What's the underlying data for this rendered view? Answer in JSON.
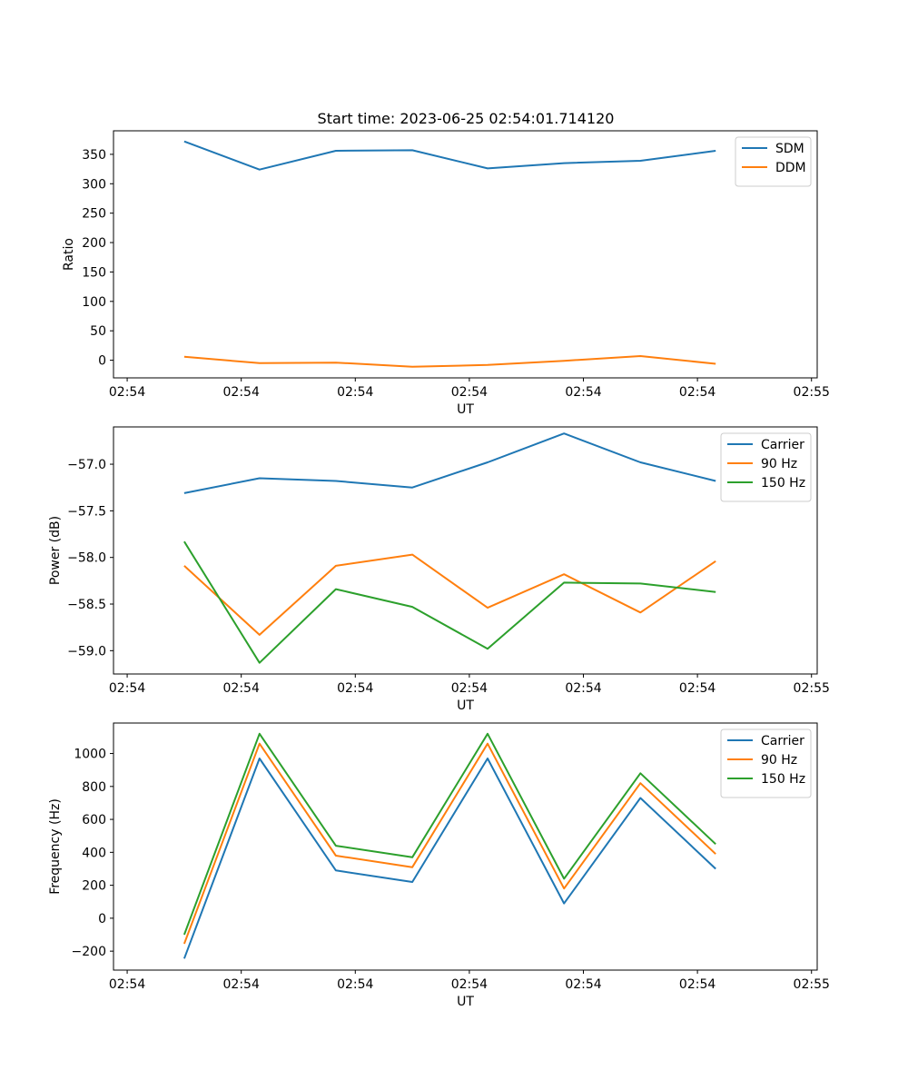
{
  "figure_title": "Start time: 2023-06-25 02:54:01.714120",
  "chart_data": [
    {
      "type": "line",
      "title": "Start time: 2023-06-25 02:54:01.714120",
      "xlabel": "UT",
      "ylabel": "Ratio",
      "xtick_labels": [
        "02:54",
        "02:54",
        "02:54",
        "02:54",
        "02:54",
        "02:54",
        "02:55"
      ],
      "x": [
        0.5,
        1.16,
        1.83,
        2.5,
        3.16,
        3.83,
        4.5,
        5.16
      ],
      "xlim": [
        -0.12,
        6.05
      ],
      "ylim": [
        -30,
        390
      ],
      "yticks": [
        0,
        50,
        100,
        150,
        200,
        250,
        300,
        350
      ],
      "series": [
        {
          "name": "SDM",
          "color": "#1f77b4",
          "values": [
            372,
            324,
            356,
            357,
            326,
            335,
            339,
            356
          ]
        },
        {
          "name": "DDM",
          "color": "#ff7f0e",
          "values": [
            6,
            -5,
            -4,
            -11,
            -8,
            -1,
            7,
            -6
          ]
        }
      ],
      "legend": "top-right"
    },
    {
      "type": "line",
      "xlabel": "UT",
      "ylabel": "Power (dB)",
      "xtick_labels": [
        "02:54",
        "02:54",
        "02:54",
        "02:54",
        "02:54",
        "02:54",
        "02:55"
      ],
      "x": [
        0.5,
        1.16,
        1.83,
        2.5,
        3.16,
        3.83,
        4.5,
        5.16
      ],
      "xlim": [
        -0.12,
        6.05
      ],
      "ylim": [
        -59.25,
        -56.6
      ],
      "yticks": [
        -59.0,
        -58.5,
        -58.0,
        -57.5,
        -57.0
      ],
      "ytick_labels": [
        "−59.0",
        "−58.5",
        "−58.0",
        "−57.5",
        "−57.0"
      ],
      "series": [
        {
          "name": "Carrier",
          "color": "#1f77b4",
          "values": [
            -57.31,
            -57.15,
            -57.18,
            -57.25,
            -56.98,
            -56.67,
            -56.98,
            -57.18
          ]
        },
        {
          "name": "90 Hz",
          "color": "#ff7f0e",
          "values": [
            -58.09,
            -58.83,
            -58.09,
            -57.97,
            -58.54,
            -58.18,
            -58.59,
            -58.04
          ]
        },
        {
          "name": "150 Hz",
          "color": "#2ca02c",
          "values": [
            -57.83,
            -59.13,
            -58.34,
            -58.53,
            -58.98,
            -58.27,
            -58.28,
            -58.37
          ]
        }
      ],
      "legend": "top-right"
    },
    {
      "type": "line",
      "xlabel": "UT",
      "ylabel": "Frequency (Hz)",
      "xtick_labels": [
        "02:54",
        "02:54",
        "02:54",
        "02:54",
        "02:54",
        "02:54",
        "02:55"
      ],
      "x": [
        0.5,
        1.16,
        1.83,
        2.5,
        3.16,
        3.83,
        4.5,
        5.16
      ],
      "xlim": [
        -0.12,
        6.05
      ],
      "ylim": [
        -315,
        1185
      ],
      "yticks": [
        -200,
        0,
        200,
        400,
        600,
        800,
        1000
      ],
      "ytick_labels": [
        "−200",
        "0",
        "200",
        "400",
        "600",
        "800",
        "1000"
      ],
      "series": [
        {
          "name": "Carrier",
          "color": "#1f77b4",
          "values": [
            -245,
            970,
            290,
            220,
            970,
            90,
            730,
            300
          ]
        },
        {
          "name": "90 Hz",
          "color": "#ff7f0e",
          "values": [
            -155,
            1060,
            380,
            310,
            1060,
            180,
            820,
            390
          ]
        },
        {
          "name": "150 Hz",
          "color": "#2ca02c",
          "values": [
            -100,
            1120,
            440,
            370,
            1120,
            240,
            880,
            450
          ]
        }
      ],
      "legend": "top-right"
    }
  ]
}
